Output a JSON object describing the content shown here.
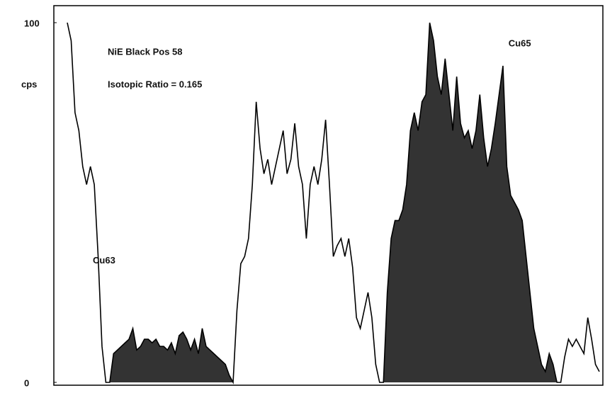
{
  "chart_data": {
    "type": "line",
    "annotations": [
      "NiE Black Pos 58",
      "Isotopic Ratio = 0.165"
    ],
    "ylabel": "cps",
    "ylim": [
      0,
      100
    ],
    "yticks": [
      0,
      100
    ],
    "grid": false,
    "series": [
      {
        "color": "#000000",
        "fill": false,
        "values": [
          100,
          95,
          75,
          70,
          60,
          55,
          60,
          55,
          35,
          10,
          0,
          0,
          8,
          9,
          10,
          11,
          12,
          15,
          9,
          10,
          12,
          12,
          11,
          12,
          10,
          10,
          9,
          11,
          8,
          13,
          14,
          12,
          9,
          12,
          8,
          15,
          10,
          9,
          8,
          7,
          6,
          5,
          2,
          0,
          20,
          33,
          35,
          40,
          55,
          78,
          65,
          58,
          62,
          55,
          60,
          65,
          70,
          58,
          62,
          72,
          60,
          55,
          40,
          55,
          60,
          55,
          62,
          73,
          55,
          35,
          38,
          40,
          35,
          40,
          32,
          18,
          15,
          20,
          25,
          18,
          5,
          0,
          0,
          25,
          40,
          45,
          45,
          48,
          55,
          70,
          75,
          70,
          78,
          80,
          100,
          95,
          85,
          80,
          90,
          80,
          70,
          85,
          72,
          68,
          70,
          65,
          70,
          80,
          68,
          60,
          65,
          72,
          80,
          88,
          60,
          52,
          50,
          48,
          45,
          35,
          25,
          15,
          10,
          5,
          3,
          8,
          5,
          0,
          0,
          7,
          12,
          10,
          12,
          10,
          8,
          18,
          12,
          5,
          3
        ]
      },
      {
        "name": "Cu63",
        "color": "#333333",
        "fill": true,
        "values": [
          null,
          null,
          null,
          null,
          null,
          null,
          null,
          null,
          null,
          null,
          null,
          0,
          8,
          9,
          10,
          11,
          12,
          15,
          9,
          10,
          12,
          12,
          11,
          12,
          10,
          10,
          9,
          11,
          8,
          13,
          14,
          12,
          9,
          12,
          8,
          15,
          10,
          9,
          8,
          7,
          6,
          5,
          2,
          0,
          null,
          null,
          null,
          null,
          null,
          null,
          null,
          null,
          null,
          null,
          null,
          null,
          null,
          null,
          null,
          null,
          null,
          null,
          null,
          null,
          null,
          null,
          null,
          null,
          null,
          null,
          null,
          null,
          null,
          null,
          null,
          null,
          null,
          null,
          null,
          null,
          null,
          null,
          null,
          null,
          null,
          null,
          null,
          null,
          null,
          null,
          null,
          null,
          null,
          null,
          null,
          null,
          null,
          null,
          null,
          null,
          null,
          null,
          null,
          null,
          null,
          null,
          null,
          null,
          null,
          null,
          null,
          null,
          null,
          null,
          null,
          null,
          null,
          null,
          null,
          null,
          null,
          null,
          null,
          null,
          null,
          null,
          null,
          null,
          null,
          null,
          null,
          null,
          null,
          null,
          null,
          null,
          null,
          null,
          null
        ]
      },
      {
        "name": "Cu65",
        "color": "#333333",
        "fill": true,
        "values": [
          null,
          null,
          null,
          null,
          null,
          null,
          null,
          null,
          null,
          null,
          null,
          null,
          null,
          null,
          null,
          null,
          null,
          null,
          null,
          null,
          null,
          null,
          null,
          null,
          null,
          null,
          null,
          null,
          null,
          null,
          null,
          null,
          null,
          null,
          null,
          null,
          null,
          null,
          null,
          null,
          null,
          null,
          null,
          null,
          null,
          null,
          null,
          null,
          null,
          null,
          null,
          null,
          null,
          null,
          null,
          null,
          null,
          null,
          null,
          null,
          null,
          null,
          null,
          null,
          null,
          null,
          null,
          null,
          null,
          null,
          null,
          null,
          null,
          null,
          null,
          null,
          null,
          null,
          null,
          null,
          null,
          null,
          0,
          25,
          40,
          45,
          45,
          48,
          55,
          70,
          75,
          70,
          78,
          80,
          100,
          95,
          85,
          80,
          90,
          80,
          70,
          85,
          72,
          68,
          70,
          65,
          70,
          80,
          68,
          60,
          65,
          72,
          80,
          88,
          60,
          52,
          50,
          48,
          45,
          35,
          25,
          15,
          10,
          5,
          3,
          8,
          5,
          0,
          null,
          null,
          null,
          null,
          null,
          null,
          null,
          null,
          null,
          null,
          null
        ]
      }
    ]
  }
}
